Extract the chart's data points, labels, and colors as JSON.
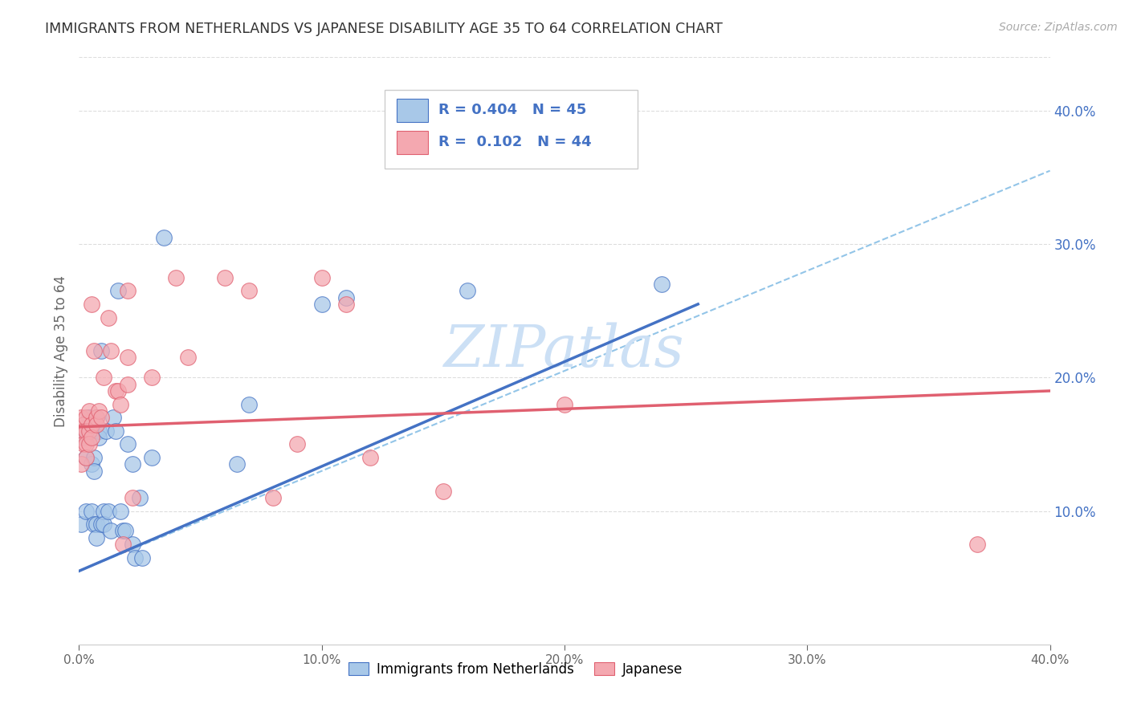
{
  "title": "IMMIGRANTS FROM NETHERLANDS VS JAPANESE DISABILITY AGE 35 TO 64 CORRELATION CHART",
  "source": "Source: ZipAtlas.com",
  "ylabel": "Disability Age 35 to 64",
  "xlim": [
    0.0,
    0.4
  ],
  "ylim": [
    0.0,
    0.44
  ],
  "xtick_labels": [
    "0.0%",
    "",
    "",
    "",
    "",
    "10.0%",
    "",
    "",
    "",
    "",
    "20.0%",
    "",
    "",
    "",
    "",
    "30.0%",
    "",
    "",
    "",
    "",
    "40.0%"
  ],
  "xtick_vals": [
    0.0,
    0.02,
    0.04,
    0.06,
    0.08,
    0.1,
    0.12,
    0.14,
    0.16,
    0.18,
    0.2,
    0.22,
    0.24,
    0.26,
    0.28,
    0.3,
    0.32,
    0.34,
    0.36,
    0.38,
    0.4
  ],
  "ytick_labels": [
    "10.0%",
    "20.0%",
    "30.0%",
    "40.0%"
  ],
  "ytick_vals": [
    0.1,
    0.2,
    0.3,
    0.4
  ],
  "blue_color": "#a8c8e8",
  "pink_color": "#f4a8b0",
  "blue_edge_color": "#4472c4",
  "pink_edge_color": "#e06070",
  "blue_line_color": "#4472c4",
  "pink_line_color": "#e06070",
  "dashed_line_color": "#93c5e8",
  "right_tick_color": "#4472c4",
  "watermark_color": "#cce0f5",
  "blue_scatter": [
    [
      0.001,
      0.09
    ],
    [
      0.002,
      0.155
    ],
    [
      0.003,
      0.16
    ],
    [
      0.003,
      0.14
    ],
    [
      0.003,
      0.1
    ],
    [
      0.004,
      0.17
    ],
    [
      0.004,
      0.16
    ],
    [
      0.005,
      0.16
    ],
    [
      0.005,
      0.135
    ],
    [
      0.005,
      0.1
    ],
    [
      0.006,
      0.14
    ],
    [
      0.006,
      0.13
    ],
    [
      0.006,
      0.09
    ],
    [
      0.007,
      0.17
    ],
    [
      0.007,
      0.09
    ],
    [
      0.007,
      0.08
    ],
    [
      0.008,
      0.16
    ],
    [
      0.008,
      0.155
    ],
    [
      0.009,
      0.22
    ],
    [
      0.009,
      0.09
    ],
    [
      0.01,
      0.1
    ],
    [
      0.01,
      0.09
    ],
    [
      0.011,
      0.16
    ],
    [
      0.012,
      0.1
    ],
    [
      0.013,
      0.085
    ],
    [
      0.014,
      0.17
    ],
    [
      0.015,
      0.16
    ],
    [
      0.016,
      0.265
    ],
    [
      0.017,
      0.1
    ],
    [
      0.018,
      0.085
    ],
    [
      0.019,
      0.085
    ],
    [
      0.02,
      0.15
    ],
    [
      0.022,
      0.135
    ],
    [
      0.022,
      0.075
    ],
    [
      0.023,
      0.065
    ],
    [
      0.025,
      0.11
    ],
    [
      0.026,
      0.065
    ],
    [
      0.03,
      0.14
    ],
    [
      0.035,
      0.305
    ],
    [
      0.065,
      0.135
    ],
    [
      0.07,
      0.18
    ],
    [
      0.1,
      0.255
    ],
    [
      0.11,
      0.26
    ],
    [
      0.16,
      0.265
    ],
    [
      0.24,
      0.27
    ]
  ],
  "pink_scatter": [
    [
      0.001,
      0.17
    ],
    [
      0.001,
      0.135
    ],
    [
      0.002,
      0.165
    ],
    [
      0.002,
      0.16
    ],
    [
      0.002,
      0.15
    ],
    [
      0.003,
      0.17
    ],
    [
      0.003,
      0.16
    ],
    [
      0.003,
      0.15
    ],
    [
      0.003,
      0.14
    ],
    [
      0.004,
      0.175
    ],
    [
      0.004,
      0.16
    ],
    [
      0.004,
      0.15
    ],
    [
      0.005,
      0.165
    ],
    [
      0.005,
      0.155
    ],
    [
      0.005,
      0.255
    ],
    [
      0.006,
      0.22
    ],
    [
      0.007,
      0.17
    ],
    [
      0.007,
      0.165
    ],
    [
      0.008,
      0.175
    ],
    [
      0.009,
      0.17
    ],
    [
      0.01,
      0.2
    ],
    [
      0.012,
      0.245
    ],
    [
      0.013,
      0.22
    ],
    [
      0.015,
      0.19
    ],
    [
      0.016,
      0.19
    ],
    [
      0.017,
      0.18
    ],
    [
      0.018,
      0.075
    ],
    [
      0.02,
      0.195
    ],
    [
      0.02,
      0.215
    ],
    [
      0.02,
      0.265
    ],
    [
      0.022,
      0.11
    ],
    [
      0.03,
      0.2
    ],
    [
      0.04,
      0.275
    ],
    [
      0.045,
      0.215
    ],
    [
      0.06,
      0.275
    ],
    [
      0.07,
      0.265
    ],
    [
      0.08,
      0.11
    ],
    [
      0.09,
      0.15
    ],
    [
      0.1,
      0.275
    ],
    [
      0.11,
      0.255
    ],
    [
      0.12,
      0.14
    ],
    [
      0.15,
      0.115
    ],
    [
      0.2,
      0.18
    ],
    [
      0.37,
      0.075
    ]
  ],
  "blue_trendline": [
    [
      0.0,
      0.055
    ],
    [
      0.255,
      0.255
    ]
  ],
  "pink_trendline": [
    [
      0.0,
      0.163
    ],
    [
      0.4,
      0.19
    ]
  ],
  "dashed_trendline": [
    [
      0.0,
      0.055
    ],
    [
      0.4,
      0.355
    ]
  ]
}
